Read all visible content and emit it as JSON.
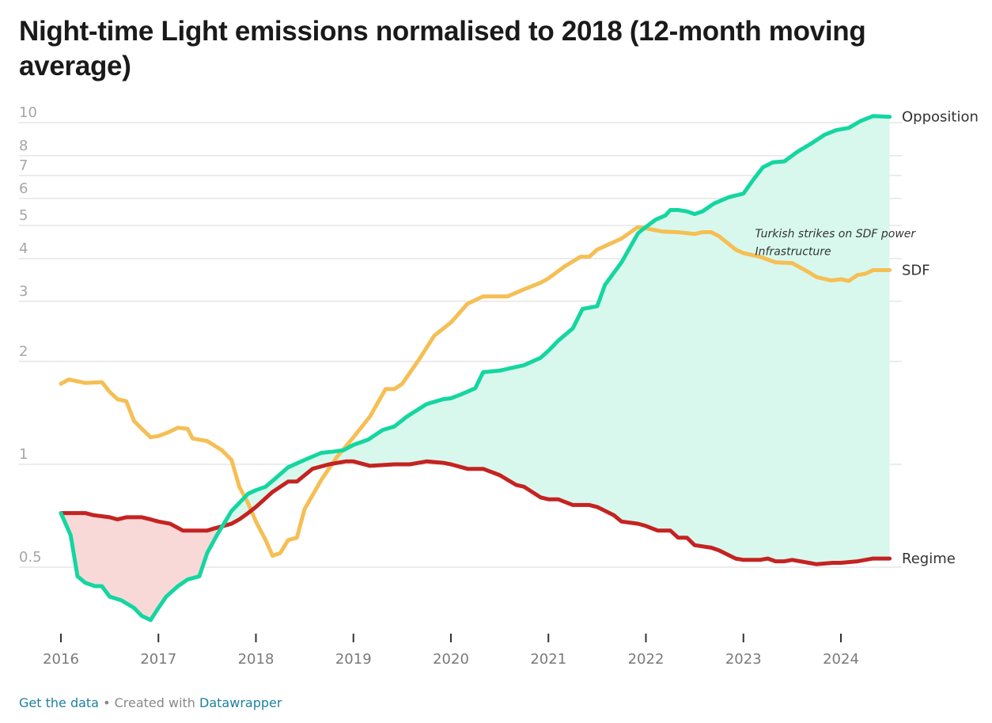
{
  "chart_data": {
    "type": "line",
    "title": "Night-time Light emissions normalised to 2018 (12-month moving average)",
    "y_scale": "log",
    "ylim": [
      0.35,
      11
    ],
    "xlim": [
      2016.0,
      2024.6
    ],
    "y_ticks": [
      {
        "value": 10,
        "label": "10"
      },
      {
        "value": 8,
        "label": "8"
      },
      {
        "value": 7,
        "label": "7"
      },
      {
        "value": 6,
        "label": "6"
      },
      {
        "value": 5,
        "label": "5"
      },
      {
        "value": 4,
        "label": "4"
      },
      {
        "value": 3,
        "label": "3"
      },
      {
        "value": 2,
        "label": "2"
      },
      {
        "value": 1,
        "label": "1"
      },
      {
        "value": 0.5,
        "label": "0.5"
      }
    ],
    "x_ticks": [
      {
        "value": 2016,
        "label": "2016"
      },
      {
        "value": 2017,
        "label": "2017"
      },
      {
        "value": 2018,
        "label": "2018"
      },
      {
        "value": 2019,
        "label": "2019"
      },
      {
        "value": 2020,
        "label": "2020"
      },
      {
        "value": 2021,
        "label": "2021"
      },
      {
        "value": 2022,
        "label": "2022"
      },
      {
        "value": 2023,
        "label": "2023"
      },
      {
        "value": 2024,
        "label": "2024"
      }
    ],
    "grid": true,
    "series": [
      {
        "name": "Opposition",
        "color": "#14d6a0",
        "points": [
          [
            2016.0,
            0.72
          ],
          [
            2016.1,
            0.62
          ],
          [
            2016.17,
            0.47
          ],
          [
            2016.25,
            0.45
          ],
          [
            2016.35,
            0.44
          ],
          [
            2016.42,
            0.44
          ],
          [
            2016.5,
            0.41
          ],
          [
            2016.62,
            0.4
          ],
          [
            2016.75,
            0.38
          ],
          [
            2016.83,
            0.36
          ],
          [
            2016.92,
            0.35
          ],
          [
            2017.0,
            0.38
          ],
          [
            2017.08,
            0.41
          ],
          [
            2017.2,
            0.44
          ],
          [
            2017.3,
            0.46
          ],
          [
            2017.42,
            0.47
          ],
          [
            2017.5,
            0.55
          ],
          [
            2017.6,
            0.62
          ],
          [
            2017.75,
            0.73
          ],
          [
            2017.92,
            0.82
          ],
          [
            2018.0,
            0.84
          ],
          [
            2018.1,
            0.86
          ],
          [
            2018.2,
            0.91
          ],
          [
            2018.33,
            0.98
          ],
          [
            2018.5,
            1.03
          ],
          [
            2018.67,
            1.08
          ],
          [
            2018.8,
            1.09
          ],
          [
            2018.9,
            1.1
          ],
          [
            2019.0,
            1.14
          ],
          [
            2019.15,
            1.18
          ],
          [
            2019.3,
            1.26
          ],
          [
            2019.42,
            1.29
          ],
          [
            2019.55,
            1.38
          ],
          [
            2019.75,
            1.5
          ],
          [
            2019.92,
            1.55
          ],
          [
            2020.0,
            1.56
          ],
          [
            2020.1,
            1.6
          ],
          [
            2020.25,
            1.67
          ],
          [
            2020.33,
            1.86
          ],
          [
            2020.5,
            1.88
          ],
          [
            2020.75,
            1.95
          ],
          [
            2020.92,
            2.05
          ],
          [
            2021.0,
            2.15
          ],
          [
            2021.1,
            2.3
          ],
          [
            2021.25,
            2.5
          ],
          [
            2021.35,
            2.85
          ],
          [
            2021.5,
            2.9
          ],
          [
            2021.58,
            3.35
          ],
          [
            2021.75,
            3.9
          ],
          [
            2021.92,
            4.75
          ],
          [
            2022.0,
            4.95
          ],
          [
            2022.1,
            5.2
          ],
          [
            2022.2,
            5.35
          ],
          [
            2022.25,
            5.55
          ],
          [
            2022.33,
            5.55
          ],
          [
            2022.42,
            5.5
          ],
          [
            2022.5,
            5.4
          ],
          [
            2022.58,
            5.5
          ],
          [
            2022.7,
            5.8
          ],
          [
            2022.85,
            6.05
          ],
          [
            2023.0,
            6.2
          ],
          [
            2023.1,
            6.8
          ],
          [
            2023.2,
            7.4
          ],
          [
            2023.3,
            7.65
          ],
          [
            2023.42,
            7.7
          ],
          [
            2023.55,
            8.2
          ],
          [
            2023.7,
            8.7
          ],
          [
            2023.83,
            9.2
          ],
          [
            2023.95,
            9.5
          ],
          [
            2024.08,
            9.65
          ],
          [
            2024.2,
            10.1
          ],
          [
            2024.33,
            10.45
          ],
          [
            2024.5,
            10.4
          ]
        ]
      },
      {
        "name": "SDF",
        "color": "#f5bf54",
        "points": [
          [
            2016.0,
            1.72
          ],
          [
            2016.08,
            1.77
          ],
          [
            2016.25,
            1.73
          ],
          [
            2016.42,
            1.74
          ],
          [
            2016.5,
            1.63
          ],
          [
            2016.58,
            1.55
          ],
          [
            2016.67,
            1.53
          ],
          [
            2016.75,
            1.34
          ],
          [
            2016.83,
            1.27
          ],
          [
            2016.92,
            1.2
          ],
          [
            2017.0,
            1.21
          ],
          [
            2017.1,
            1.24
          ],
          [
            2017.2,
            1.28
          ],
          [
            2017.3,
            1.27
          ],
          [
            2017.35,
            1.19
          ],
          [
            2017.5,
            1.17
          ],
          [
            2017.65,
            1.1
          ],
          [
            2017.75,
            1.03
          ],
          [
            2017.83,
            0.86
          ],
          [
            2017.92,
            0.77
          ],
          [
            2018.0,
            0.68
          ],
          [
            2018.1,
            0.6
          ],
          [
            2018.17,
            0.54
          ],
          [
            2018.25,
            0.55
          ],
          [
            2018.33,
            0.6
          ],
          [
            2018.42,
            0.61
          ],
          [
            2018.5,
            0.74
          ],
          [
            2018.67,
            0.9
          ],
          [
            2018.83,
            1.05
          ],
          [
            2019.0,
            1.2
          ],
          [
            2019.17,
            1.38
          ],
          [
            2019.33,
            1.66
          ],
          [
            2019.42,
            1.66
          ],
          [
            2019.5,
            1.72
          ],
          [
            2019.67,
            2.02
          ],
          [
            2019.83,
            2.38
          ],
          [
            2020.0,
            2.6
          ],
          [
            2020.17,
            2.95
          ],
          [
            2020.33,
            3.1
          ],
          [
            2020.58,
            3.1
          ],
          [
            2020.75,
            3.25
          ],
          [
            2020.92,
            3.4
          ],
          [
            2021.0,
            3.5
          ],
          [
            2021.17,
            3.8
          ],
          [
            2021.33,
            4.05
          ],
          [
            2021.42,
            4.05
          ],
          [
            2021.5,
            4.25
          ],
          [
            2021.58,
            4.35
          ],
          [
            2021.75,
            4.58
          ],
          [
            2021.92,
            4.95
          ],
          [
            2022.0,
            4.9
          ],
          [
            2022.17,
            4.8
          ],
          [
            2022.33,
            4.78
          ],
          [
            2022.5,
            4.72
          ],
          [
            2022.58,
            4.78
          ],
          [
            2022.67,
            4.78
          ],
          [
            2022.75,
            4.65
          ],
          [
            2022.92,
            4.25
          ],
          [
            2023.0,
            4.15
          ],
          [
            2023.17,
            4.05
          ],
          [
            2023.33,
            3.9
          ],
          [
            2023.5,
            3.88
          ],
          [
            2023.67,
            3.65
          ],
          [
            2023.75,
            3.53
          ],
          [
            2023.9,
            3.45
          ],
          [
            2024.0,
            3.48
          ],
          [
            2024.08,
            3.44
          ],
          [
            2024.17,
            3.58
          ],
          [
            2024.25,
            3.61
          ],
          [
            2024.33,
            3.7
          ],
          [
            2024.5,
            3.7
          ]
        ]
      },
      {
        "name": "Regime",
        "color": "#c42321",
        "points": [
          [
            2016.0,
            0.72
          ],
          [
            2016.25,
            0.72
          ],
          [
            2016.33,
            0.71
          ],
          [
            2016.5,
            0.7
          ],
          [
            2016.58,
            0.69
          ],
          [
            2016.67,
            0.7
          ],
          [
            2016.83,
            0.7
          ],
          [
            2016.92,
            0.69
          ],
          [
            2017.0,
            0.68
          ],
          [
            2017.12,
            0.67
          ],
          [
            2017.25,
            0.64
          ],
          [
            2017.42,
            0.64
          ],
          [
            2017.5,
            0.64
          ],
          [
            2017.58,
            0.65
          ],
          [
            2017.75,
            0.67
          ],
          [
            2017.83,
            0.69
          ],
          [
            2017.92,
            0.72
          ],
          [
            2018.0,
            0.75
          ],
          [
            2018.17,
            0.83
          ],
          [
            2018.33,
            0.89
          ],
          [
            2018.42,
            0.89
          ],
          [
            2018.58,
            0.97
          ],
          [
            2018.75,
            1.0
          ],
          [
            2018.92,
            1.02
          ],
          [
            2019.0,
            1.02
          ],
          [
            2019.17,
            0.99
          ],
          [
            2019.42,
            1.0
          ],
          [
            2019.58,
            1.0
          ],
          [
            2019.75,
            1.02
          ],
          [
            2019.92,
            1.01
          ],
          [
            2020.0,
            1.0
          ],
          [
            2020.17,
            0.97
          ],
          [
            2020.33,
            0.97
          ],
          [
            2020.5,
            0.93
          ],
          [
            2020.67,
            0.87
          ],
          [
            2020.75,
            0.86
          ],
          [
            2020.92,
            0.8
          ],
          [
            2021.0,
            0.79
          ],
          [
            2021.1,
            0.79
          ],
          [
            2021.25,
            0.76
          ],
          [
            2021.42,
            0.76
          ],
          [
            2021.5,
            0.75
          ],
          [
            2021.67,
            0.71
          ],
          [
            2021.75,
            0.68
          ],
          [
            2021.92,
            0.67
          ],
          [
            2022.0,
            0.66
          ],
          [
            2022.12,
            0.64
          ],
          [
            2022.25,
            0.64
          ],
          [
            2022.33,
            0.61
          ],
          [
            2022.42,
            0.61
          ],
          [
            2022.5,
            0.58
          ],
          [
            2022.67,
            0.57
          ],
          [
            2022.75,
            0.56
          ],
          [
            2022.92,
            0.53
          ],
          [
            2023.0,
            0.525
          ],
          [
            2023.17,
            0.525
          ],
          [
            2023.25,
            0.53
          ],
          [
            2023.33,
            0.52
          ],
          [
            2023.42,
            0.52
          ],
          [
            2023.5,
            0.525
          ],
          [
            2023.67,
            0.515
          ],
          [
            2023.75,
            0.51
          ],
          [
            2023.92,
            0.515
          ],
          [
            2024.0,
            0.515
          ],
          [
            2024.17,
            0.52
          ],
          [
            2024.33,
            0.53
          ],
          [
            2024.5,
            0.53
          ]
        ]
      }
    ],
    "annotations": [
      {
        "text": "Turkish strikes on SDF power",
        "x": 2023.12,
        "y": 4.62
      },
      {
        "text": "Infrastructure",
        "x": 2023.12,
        "y": 4.1
      }
    ]
  },
  "footer": {
    "get_data": "Get the data",
    "separator": " • Created with ",
    "tool": "Datawrapper"
  }
}
